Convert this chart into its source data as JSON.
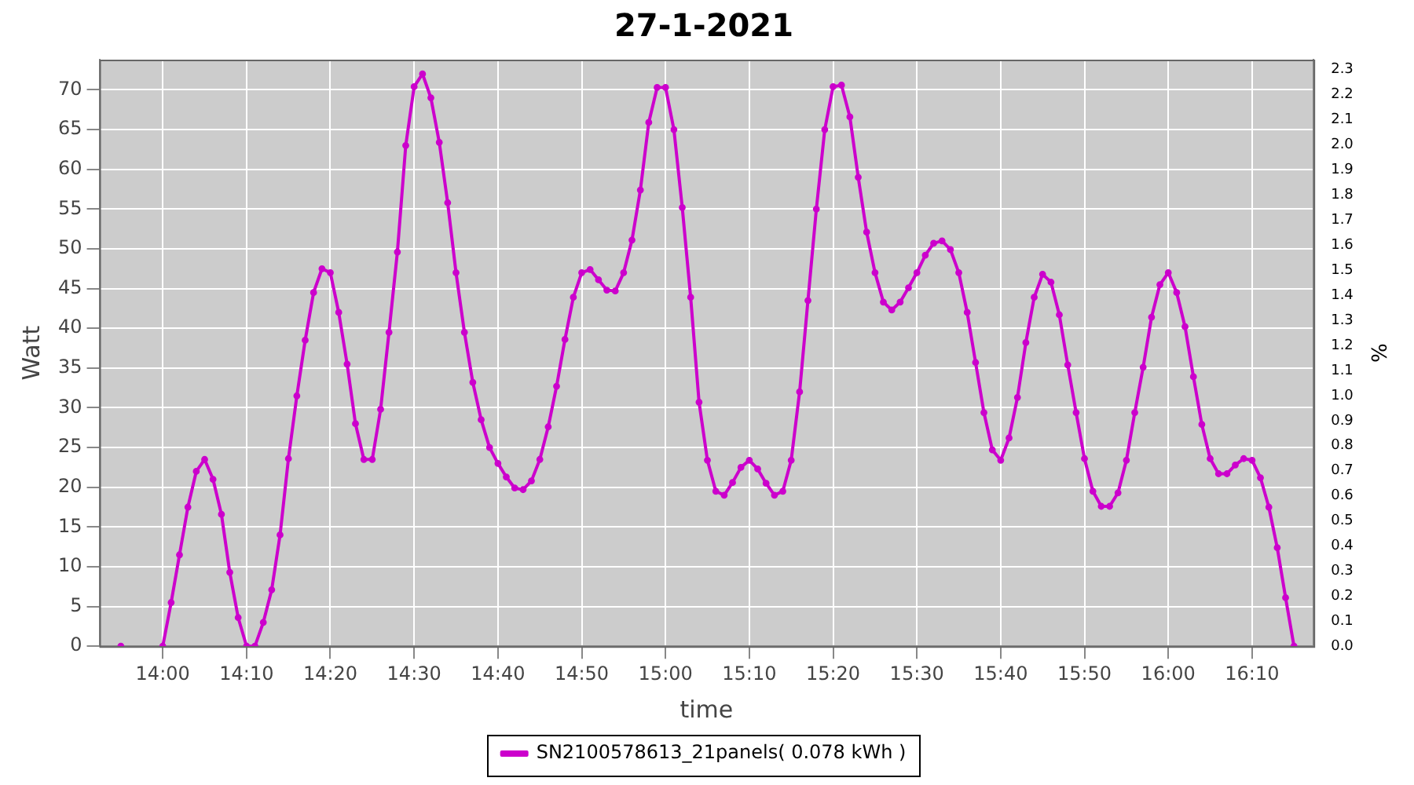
{
  "chart_data": {
    "type": "line",
    "title": "27-1-2021",
    "xlabel": "time",
    "ylabel": "Watt",
    "y2label": "%",
    "xlim": [
      13.874,
      16.289
    ],
    "xticks": [
      {
        "value": 14,
        "label": "14:00"
      },
      {
        "value": 14.1667,
        "label": "14:10"
      },
      {
        "value": 14.3333,
        "label": "14:20"
      },
      {
        "value": 14.5,
        "label": "14:30"
      },
      {
        "value": 14.6667,
        "label": "14:40"
      },
      {
        "value": 14.8333,
        "label": "14:50"
      },
      {
        "value": 15,
        "label": "15:00"
      },
      {
        "value": 15.1667,
        "label": "15:10"
      },
      {
        "value": 15.3333,
        "label": "15:20"
      },
      {
        "value": 15.5,
        "label": "15:30"
      },
      {
        "value": 15.6667,
        "label": "15:40"
      },
      {
        "value": 15.8333,
        "label": "15:50"
      },
      {
        "value": 16,
        "label": "16:00"
      },
      {
        "value": 16.1667,
        "label": "16:10"
      }
    ],
    "ylim": [
      0,
      73.8
    ],
    "yticks": [
      0,
      5,
      10,
      15,
      20,
      25,
      30,
      35,
      40,
      45,
      50,
      55,
      60,
      65,
      70
    ],
    "y2lim": [
      0,
      2.34
    ],
    "y2ticks": [
      {
        "value": 0,
        "label": "0.0"
      },
      0.1,
      0.2,
      0.3,
      0.4,
      0.5,
      0.6,
      0.7,
      0.8,
      0.9,
      {
        "value": 1,
        "label": "1.0"
      },
      1.1,
      1.2,
      1.3,
      1.4,
      1.5,
      1.6,
      1.7,
      1.8,
      1.9,
      {
        "value": 2,
        "label": "2.0"
      },
      2.1,
      2.2,
      2.3
    ],
    "grid": true,
    "legend": "bottom",
    "marker": "circle",
    "line_style": "solid",
    "series": [
      {
        "name": "SN2100578613_21panels( 0.078 kWh )",
        "color": "#cc00cc",
        "x": [
          13.9167,
          13.95,
          14,
          14.0167,
          14.0333,
          14.05,
          14.0667,
          14.0833,
          14.1,
          14.1167,
          14.1333,
          14.15,
          14.1667,
          14.1833,
          14.2,
          14.2167,
          14.2333,
          14.25,
          14.2667,
          14.2833,
          14.3,
          14.3167,
          14.3333,
          14.35,
          14.3667,
          14.3833,
          14.4,
          14.4167,
          14.4333,
          14.45,
          14.4667,
          14.4833,
          14.5,
          14.5167,
          14.5333,
          14.55,
          14.5667,
          14.5833,
          14.6,
          14.6167,
          14.6333,
          14.65,
          14.6667,
          14.6833,
          14.7,
          14.7167,
          14.7333,
          14.75,
          14.7667,
          14.7833,
          14.8,
          14.8167,
          14.8333,
          14.85,
          14.8667,
          14.8833,
          14.9,
          14.9167,
          14.9333,
          14.95,
          14.9667,
          14.9833,
          15,
          15.0167,
          15.0333,
          15.05,
          15.0667,
          15.0833,
          15.1,
          15.1167,
          15.1333,
          15.15,
          15.1667,
          15.1833,
          15.2,
          15.2167,
          15.2333,
          15.25,
          15.2667,
          15.2833,
          15.3,
          15.3167,
          15.3333,
          15.35,
          15.3667,
          15.3833,
          15.4,
          15.4167,
          15.4333,
          15.45,
          15.4667,
          15.4833,
          15.5,
          15.5167,
          15.5333,
          15.55,
          15.5667,
          15.5833,
          15.6,
          15.6167,
          15.6333,
          15.65,
          15.6667,
          15.6833,
          15.7,
          15.7167,
          15.7333,
          15.75,
          15.7667,
          15.7833,
          15.8,
          15.8167,
          15.8333,
          15.85,
          15.8667,
          15.8833,
          15.9,
          15.9167,
          15.9333,
          15.95,
          15.9667,
          15.9833,
          16,
          16.0167,
          16.0333,
          16.05,
          16.0667,
          16.0833,
          16.1,
          16.1167,
          16.1333,
          16.15,
          16.1667,
          16.1833,
          16.2,
          16.2167,
          16.2333,
          16.25
        ],
        "values": [
          0,
          null,
          0,
          5.5,
          11.5,
          17.5,
          22,
          23.5,
          21,
          16.6,
          9.3,
          3.6,
          0,
          0,
          3,
          7.1,
          14,
          23.6,
          31.5,
          38.5,
          44.5,
          47.5,
          47,
          42,
          35.5,
          28,
          23.5,
          23.5,
          29.8,
          39.5,
          49.6,
          63,
          70.4,
          72,
          69,
          63.4,
          55.8,
          47,
          39.5,
          33.2,
          28.5,
          25,
          23,
          21.3,
          19.9,
          19.7,
          20.8,
          23.5,
          27.6,
          32.7,
          38.6,
          43.9,
          47,
          47.4,
          46.1,
          44.8,
          44.7,
          47,
          51.1,
          57.4,
          65.9,
          70.3,
          70.3,
          65,
          55.2,
          43.9,
          30.7,
          23.4,
          19.5,
          19,
          20.6,
          22.5,
          23.4,
          22.3,
          20.5,
          19,
          19.5,
          23.4,
          32,
          43.5,
          55,
          65,
          70.4,
          70.6,
          66.6,
          59,
          52.1,
          47,
          43.3,
          42.3,
          43.3,
          45.1,
          47,
          49.2,
          50.7,
          51,
          49.9,
          47,
          42,
          35.7,
          29.4,
          24.7,
          23.4,
          26.2,
          31.3,
          38.2,
          43.9,
          46.8,
          45.8,
          41.7,
          35.4,
          29.4,
          23.6,
          19.5,
          17.6,
          17.6,
          19.3,
          23.4,
          29.4,
          35.1,
          41.4,
          45.5,
          47,
          44.5,
          40.2,
          33.9,
          27.9,
          23.6,
          21.7,
          21.7,
          22.8,
          23.6,
          23.4,
          21.2,
          17.5,
          12.4,
          6.1,
          0
        ]
      }
    ]
  }
}
